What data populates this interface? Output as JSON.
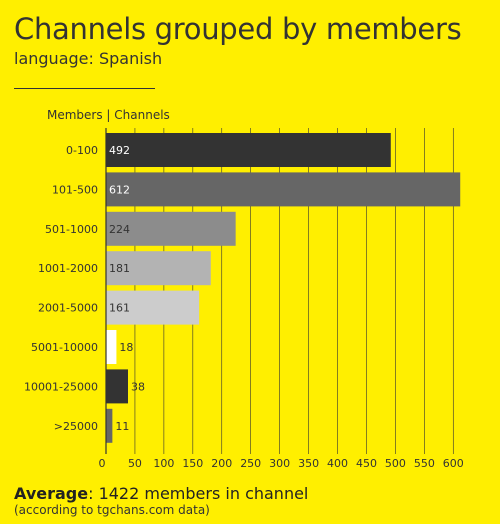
{
  "header": {
    "title": "Channels grouped by members",
    "subtitle": "language: Spanish",
    "column_header": "Members | Channels"
  },
  "footer": {
    "average_label": "Average",
    "average_text": ": 1422 members in channel",
    "note": "(according to tgchans.com data)"
  },
  "chart_data": {
    "type": "bar",
    "orientation": "horizontal",
    "title": "Channels grouped by members",
    "subtitle": "language: Spanish",
    "categories": [
      "0-100",
      "101-500",
      "501-1000",
      "1001-2000",
      "2001-5000",
      "5001-10000",
      "10001-25000",
      ">25000"
    ],
    "values": [
      492,
      612,
      224,
      181,
      161,
      18,
      38,
      11
    ],
    "bar_colors": [
      "#333333",
      "#666666",
      "#8C8C8C",
      "#B3B3B3",
      "#CCCCCC",
      "#FFFFFF",
      "#333333",
      "#666666"
    ],
    "label_colors": [
      "#FFFFFF",
      "#FFFFFF",
      "#333333",
      "#333333",
      "#333333",
      "#333333",
      "#FFFFFF",
      "#333333"
    ],
    "xlim": [
      0,
      625
    ],
    "xticks": [
      0,
      50,
      100,
      150,
      200,
      250,
      300,
      350,
      400,
      450,
      500,
      550,
      600
    ],
    "grid": true
  },
  "colors": {
    "background": "#FFEF00",
    "text": "#333333",
    "grid": "#333333"
  }
}
